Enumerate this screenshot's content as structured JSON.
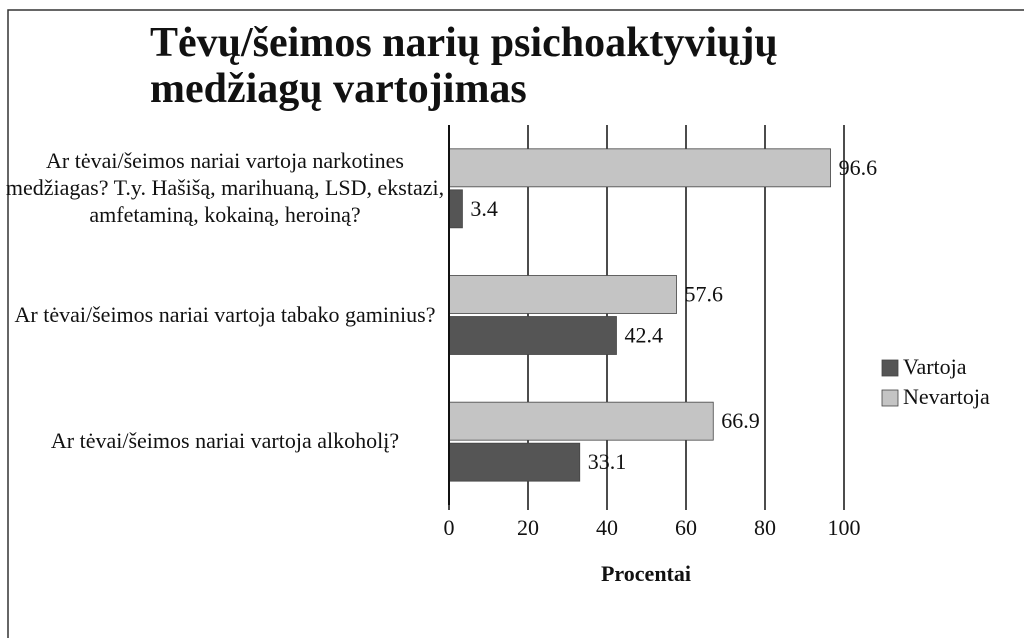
{
  "chart_data": {
    "type": "bar",
    "orientation": "horizontal",
    "title": "Tėvų/šeimos narių psichoaktyviųjų medžiagų vartojimas",
    "categories": [
      "Ar tėvai/šeimos nariai vartoja narkotines medžiagas? T.y. Hašišą, marihuaną, LSD, ekstazi, amfetaminą, kokainą, heroiną?",
      "Ar tėvai/šeimos nariai vartoja tabako gaminius?",
      "Ar tėvai/šeimos nariai vartoja alkoholį?"
    ],
    "series": [
      {
        "name": "Vartoja",
        "color": "#555555",
        "values": [
          3.4,
          42.4,
          33.1
        ]
      },
      {
        "name": "Nevartoja",
        "color": "#c4c4c4",
        "values": [
          96.6,
          57.6,
          66.9
        ]
      }
    ],
    "xlabel": "Procentai",
    "xlim": [
      0,
      100
    ],
    "xticks": [
      0,
      20,
      40,
      60,
      80,
      100
    ],
    "grid": true,
    "legend": "right"
  }
}
